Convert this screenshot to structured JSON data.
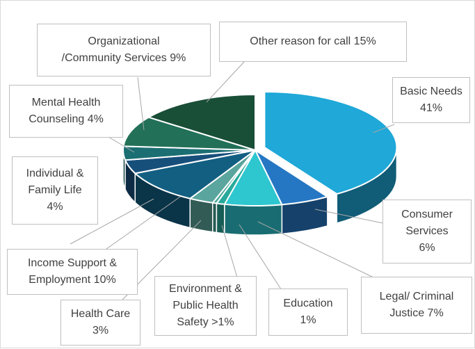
{
  "chart_data": {
    "type": "pie",
    "style": "3d-exploded",
    "legend": "none",
    "slices": [
      {
        "key": "basic",
        "label_lines": [
          "Basic Needs",
          "41%"
        ],
        "value": 41,
        "color": "#1fa8d8"
      },
      {
        "key": "consumer",
        "label_lines": [
          "Consumer",
          "Services",
          "6%"
        ],
        "value": 6,
        "color": "#2677c3"
      },
      {
        "key": "legal",
        "label_lines": [
          "Legal/ Criminal",
          "Justice 7%"
        ],
        "value": 7,
        "color": "#2ec6cf"
      },
      {
        "key": "education",
        "label_lines": [
          "Education",
          "1%"
        ],
        "value": 1,
        "color": "#28a99b"
      },
      {
        "key": "environment",
        "label_lines": [
          "Environment &",
          "Public Health",
          "Safety >1%"
        ],
        "value": 0.5,
        "color": "#47a79a"
      },
      {
        "key": "healthcare",
        "label_lines": [
          "Health Care",
          "3%"
        ],
        "value": 3,
        "color": "#5aa59d"
      },
      {
        "key": "income",
        "label_lines": [
          "Income Support &",
          "Employment 10%"
        ],
        "value": 10,
        "color": "#135f82"
      },
      {
        "key": "individual",
        "label_lines": [
          "Individual &",
          "Family Life",
          "4%"
        ],
        "value": 4,
        "color": "#174f7b"
      },
      {
        "key": "mental",
        "label_lines": [
          "Mental Health",
          "Counseling 4%"
        ],
        "value": 4,
        "color": "#1b6f73"
      },
      {
        "key": "org",
        "label_lines": [
          "Organizational",
          "/Community Services  9%"
        ],
        "value": 9,
        "color": "#227058"
      },
      {
        "key": "other",
        "label_lines": [
          "Other reason for call 15%"
        ],
        "value": 15,
        "color": "#194e37"
      }
    ]
  }
}
